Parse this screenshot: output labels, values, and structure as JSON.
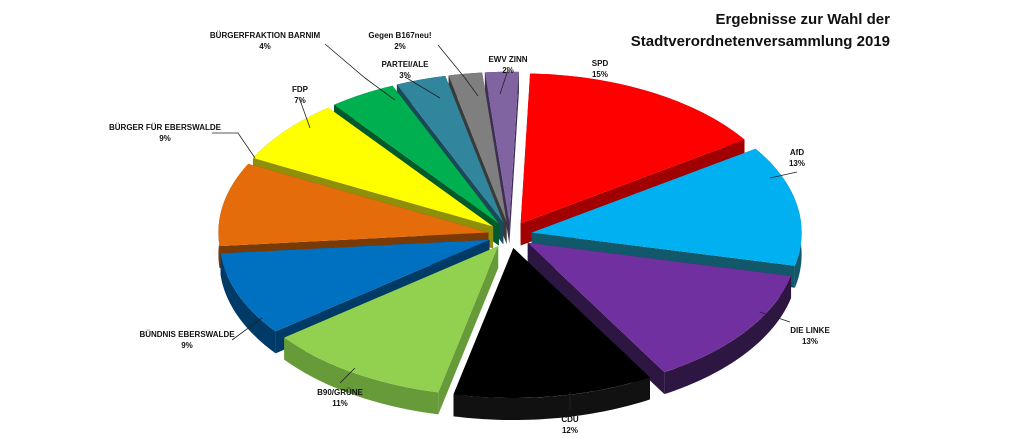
{
  "chart_data": {
    "type": "pie",
    "title_lines": [
      "Ergebnisse zur Wahl der",
      "Stadtverordnetenversammlung 2019"
    ],
    "slices": [
      {
        "label": "SPD",
        "value_label": "15%",
        "value": 15,
        "color": "#ff0000",
        "side": "#a00000"
      },
      {
        "label": "AfD",
        "value_label": "13%",
        "value": 13,
        "color": "#00b0f0",
        "side": "#11596a"
      },
      {
        "label": "DIE LINKE",
        "value_label": "13%",
        "value": 13,
        "color": "#7030a0",
        "side": "#2e1642"
      },
      {
        "label": "CDU",
        "value_label": "12%",
        "value": 12,
        "color": "#000000",
        "side": "#111111"
      },
      {
        "label": "B90/GRÜNE",
        "value_label": "11%",
        "value": 11,
        "color": "#92d050",
        "side": "#679a38"
      },
      {
        "label": "BÜNDNIS EBERSWALDE",
        "value_label": "9%",
        "value": 9,
        "color": "#0070c0",
        "side": "#003a66"
      },
      {
        "label": "BÜRGER FÜR EBERSWALDE",
        "value_label": "9%",
        "value": 9,
        "color": "#e46c0a",
        "side": "#7a3a06"
      },
      {
        "label": "FDP",
        "value_label": "7%",
        "value": 7,
        "color": "#ffff00",
        "side": "#8f8f0a"
      },
      {
        "label": "BÜRGERFRAKTION BARNIM",
        "value_label": "4%",
        "value": 4,
        "color": "#00b050",
        "side": "#005a29"
      },
      {
        "label": "PARTEI/ALE",
        "value_label": "3%",
        "value": 3,
        "color": "#31859c",
        "side": "#1a4a57"
      },
      {
        "label": "Gegen B167neu!",
        "value_label": "2%",
        "value": 2,
        "color": "#7f7f7f",
        "side": "#3a3a3a"
      },
      {
        "label": "EWV ZINN",
        "value_label": "2%",
        "value": 2,
        "color": "#8064a2",
        "side": "#3e2f52"
      }
    ],
    "legend": "none",
    "style": "3d-exploded"
  }
}
